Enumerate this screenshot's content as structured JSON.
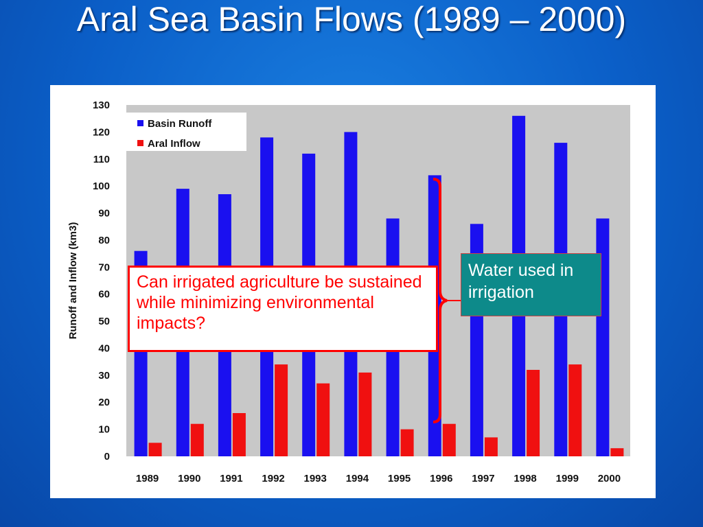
{
  "slide": {
    "title": "Aral Sea Basin Flows (1989 – 2000)"
  },
  "annotations": {
    "question": "Can irrigated agriculture be sustained while minimizing environmental impacts?",
    "callout": "Water used in irrigation"
  },
  "colors": {
    "background": "#0b5fc8",
    "basin_runoff": "#1a10f0",
    "aral_inflow": "#f01010",
    "plot_area": "#c8c8c8",
    "question_border": "#ff0000",
    "callout_fill": "#0d8a8a"
  },
  "chart_data": {
    "type": "bar",
    "categories": [
      "1989",
      "1990",
      "1991",
      "1992",
      "1993",
      "1994",
      "1995",
      "1996",
      "1997",
      "1998",
      "1999",
      "2000"
    ],
    "series": [
      {
        "name": "Basin Runoff",
        "values": [
          76,
          99,
          97,
          118,
          112,
          120,
          88,
          104,
          86,
          126,
          116,
          88
        ]
      },
      {
        "name": "Aral Inflow",
        "values": [
          5,
          12,
          16,
          34,
          27,
          31,
          10,
          12,
          7,
          32,
          34,
          3
        ]
      }
    ],
    "ylabel": "Runoff and Inflow (km3)",
    "xlabel": "",
    "ylim": [
      0,
      130
    ],
    "yticks": [
      0,
      10,
      20,
      30,
      40,
      50,
      60,
      70,
      80,
      90,
      100,
      110,
      120,
      130
    ],
    "legend_position": "top-left",
    "grid": false
  }
}
